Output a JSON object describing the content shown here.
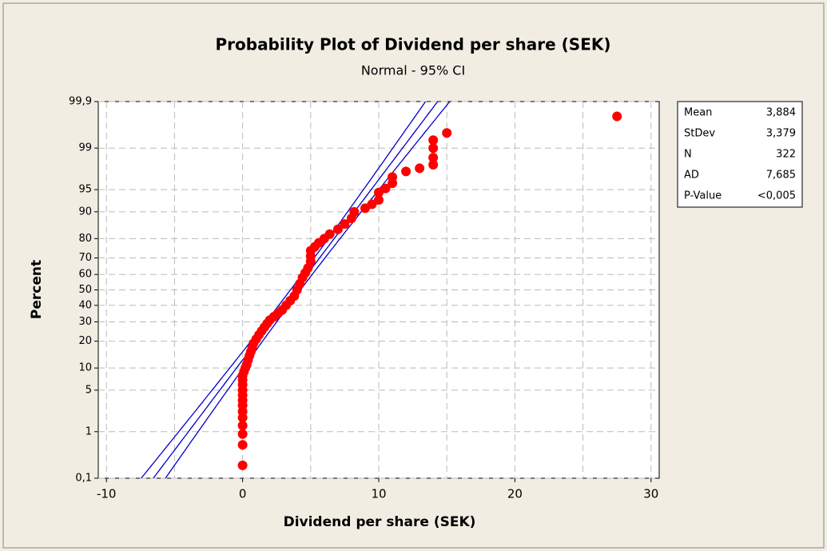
{
  "chart_data": {
    "type": "probability",
    "title": "Probability Plot of Dividend per share (SEK)",
    "subtitle": "Normal - 95% CI",
    "xlabel": "Dividend per share (SEK)",
    "ylabel": "Percent",
    "xlim": [
      -10.6,
      30.6
    ],
    "xticks": [
      -10,
      0,
      10,
      20,
      30
    ],
    "xgrid": [
      -10,
      -5,
      0,
      5,
      10,
      15,
      20,
      25,
      30
    ],
    "ylim": [
      0.1,
      99.9
    ],
    "yticks": [
      {
        "value": 0.1,
        "label": "0,1"
      },
      1,
      5,
      10,
      20,
      30,
      40,
      50,
      60,
      70,
      80,
      90,
      95,
      99,
      {
        "value": 99.9,
        "label": "99,9"
      }
    ],
    "grid": true,
    "point_color": "#ff0000",
    "line_color": "#0000cc",
    "x": [
      0,
      0,
      0,
      0,
      0,
      0,
      0,
      0,
      0,
      0,
      0,
      0,
      0,
      0.1,
      0.2,
      0.3,
      0.4,
      0.5,
      0.6,
      0.7,
      0.8,
      1,
      1.2,
      1.4,
      1.6,
      1.8,
      2,
      2.3,
      2.6,
      2.9,
      3.2,
      3.5,
      3.8,
      4,
      4.2,
      4.4,
      4.6,
      4.8,
      5,
      5,
      5,
      5.3,
      5.6,
      6,
      6.4,
      7,
      7.5,
      8,
      8.2,
      9,
      9.5,
      10,
      10,
      10.5,
      11,
      11,
      12,
      13,
      14,
      14,
      14,
      14,
      15,
      27.5
    ],
    "values": [
      0.2,
      0.55,
      0.9,
      1.3,
      1.8,
      2.3,
      2.9,
      3.5,
      4.2,
      5,
      6,
      7,
      8,
      9,
      10,
      11,
      12.5,
      14,
      15.5,
      17,
      19,
      21,
      23,
      25,
      27,
      29,
      31,
      33,
      35,
      37,
      40,
      43,
      46,
      50,
      54,
      58,
      61,
      64,
      68,
      71,
      74,
      76,
      78,
      80,
      82,
      84,
      86,
      88,
      90,
      91,
      92,
      93,
      94.5,
      95.2,
      96,
      96.8,
      97.4,
      97.7,
      98,
      98.5,
      99,
      99.3,
      99.5,
      99.78
    ],
    "stats": [
      {
        "name": "Mean",
        "value": 3.884,
        "label": "3,884"
      },
      {
        "name": "StDev",
        "value": 3.379,
        "label": "3,379"
      },
      {
        "name": "N",
        "value": 322,
        "label": "322"
      },
      {
        "name": "AD",
        "value": 7.685,
        "label": "7,685"
      },
      {
        "name": "P-Value",
        "label": "<0,005"
      }
    ]
  }
}
